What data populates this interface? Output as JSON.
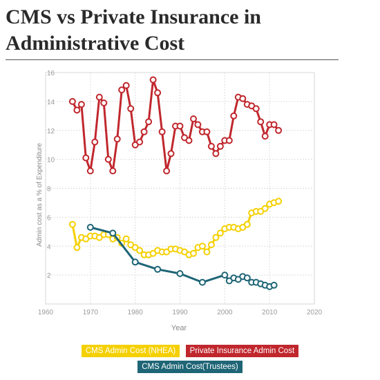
{
  "title": "CMS vs Private Insurance in Administrative Cost",
  "chart_data": {
    "type": "line",
    "title": "CMS vs Private Insurance in Administrative Cost",
    "xlabel": "Year",
    "ylabel": "Admin cost as a % of Expenditure",
    "xlim": [
      1960,
      2020
    ],
    "ylim": [
      0,
      16
    ],
    "xticks": [
      "1960",
      "1970",
      "1980",
      "1990",
      "2000",
      "2010",
      "2020"
    ],
    "yticks": [
      "2",
      "4",
      "6",
      "8",
      "10",
      "12",
      "14",
      "16"
    ],
    "grid": true,
    "legend_position": "bottom",
    "series": [
      {
        "name": "Private Insurance Admin Cost",
        "color": "#c0272d",
        "points": [
          [
            1966,
            14.0
          ],
          [
            1967,
            13.4
          ],
          [
            1968,
            13.8
          ],
          [
            1969,
            10.1
          ],
          [
            1970,
            9.2
          ],
          [
            1971,
            11.2
          ],
          [
            1972,
            14.3
          ],
          [
            1973,
            13.9
          ],
          [
            1974,
            10.0
          ],
          [
            1975,
            9.2
          ],
          [
            1976,
            11.4
          ],
          [
            1977,
            14.8
          ],
          [
            1978,
            15.1
          ],
          [
            1979,
            13.5
          ],
          [
            1980,
            11.0
          ],
          [
            1981,
            11.2
          ],
          [
            1982,
            11.9
          ],
          [
            1983,
            12.6
          ],
          [
            1984,
            15.5
          ],
          [
            1985,
            14.6
          ],
          [
            1986,
            11.9
          ],
          [
            1987,
            9.2
          ],
          [
            1988,
            10.4
          ],
          [
            1989,
            12.3
          ],
          [
            1990,
            12.3
          ],
          [
            1991,
            11.5
          ],
          [
            1992,
            11.3
          ],
          [
            1993,
            12.8
          ],
          [
            1994,
            12.4
          ],
          [
            1995,
            11.9
          ],
          [
            1996,
            11.9
          ],
          [
            1997,
            10.9
          ],
          [
            1998,
            10.4
          ],
          [
            1999,
            10.9
          ],
          [
            2000,
            11.3
          ],
          [
            2001,
            11.3
          ],
          [
            2002,
            13.0
          ],
          [
            2003,
            14.3
          ],
          [
            2004,
            14.2
          ],
          [
            2005,
            13.8
          ],
          [
            2006,
            13.7
          ],
          [
            2007,
            13.5
          ],
          [
            2008,
            12.6
          ],
          [
            2009,
            11.6
          ],
          [
            2010,
            12.4
          ],
          [
            2011,
            12.4
          ],
          [
            2012,
            12.0
          ]
        ]
      },
      {
        "name": "CMS Admin Cost (NHEA)",
        "color": "#f5d000",
        "points": [
          [
            1966,
            5.5
          ],
          [
            1967,
            3.9
          ],
          [
            1968,
            4.6
          ],
          [
            1969,
            4.5
          ],
          [
            1970,
            4.7
          ],
          [
            1971,
            4.7
          ],
          [
            1972,
            4.6
          ],
          [
            1973,
            4.8
          ],
          [
            1974,
            4.8
          ],
          [
            1975,
            4.5
          ],
          [
            1976,
            4.6
          ],
          [
            1977,
            4.2
          ],
          [
            1978,
            4.5
          ],
          [
            1979,
            4.1
          ],
          [
            1980,
            3.9
          ],
          [
            1981,
            3.7
          ],
          [
            1982,
            3.4
          ],
          [
            1983,
            3.4
          ],
          [
            1984,
            3.5
          ],
          [
            1985,
            3.7
          ],
          [
            1986,
            3.6
          ],
          [
            1987,
            3.6
          ],
          [
            1988,
            3.8
          ],
          [
            1989,
            3.8
          ],
          [
            1990,
            3.7
          ],
          [
            1991,
            3.6
          ],
          [
            1992,
            3.4
          ],
          [
            1993,
            3.5
          ],
          [
            1994,
            3.9
          ],
          [
            1995,
            4.0
          ],
          [
            1996,
            3.6
          ],
          [
            1997,
            4.1
          ],
          [
            1998,
            4.6
          ],
          [
            1999,
            4.9
          ],
          [
            2000,
            5.2
          ],
          [
            2001,
            5.3
          ],
          [
            2002,
            5.3
          ],
          [
            2003,
            5.2
          ],
          [
            2004,
            5.3
          ],
          [
            2005,
            5.5
          ],
          [
            2006,
            6.3
          ],
          [
            2007,
            6.4
          ],
          [
            2008,
            6.4
          ],
          [
            2009,
            6.6
          ],
          [
            2010,
            6.9
          ],
          [
            2011,
            7.0
          ],
          [
            2012,
            7.1
          ]
        ]
      },
      {
        "name": "CMS Admin Cost(Trustees)",
        "color": "#1e6576",
        "points": [
          [
            1970,
            5.3
          ],
          [
            1975,
            4.9
          ],
          [
            1980,
            2.9
          ],
          [
            1985,
            2.4
          ],
          [
            1990,
            2.1
          ],
          [
            1995,
            1.5
          ],
          [
            2000,
            2.0
          ],
          [
            2001,
            1.6
          ],
          [
            2002,
            1.8
          ],
          [
            2003,
            1.7
          ],
          [
            2004,
            1.9
          ],
          [
            2005,
            1.8
          ],
          [
            2006,
            1.5
          ],
          [
            2007,
            1.5
          ],
          [
            2008,
            1.4
          ],
          [
            2009,
            1.3
          ],
          [
            2010,
            1.2
          ],
          [
            2011,
            1.3
          ]
        ]
      }
    ]
  },
  "legend": {
    "items": [
      {
        "label": "CMS Admin Cost (NHEA)",
        "color": "#f5d000"
      },
      {
        "label": "Private Insurance Admin Cost",
        "color": "#c0272d"
      },
      {
        "label": "CMS Admin Cost(Trustees)",
        "color": "#1e6576"
      }
    ]
  }
}
